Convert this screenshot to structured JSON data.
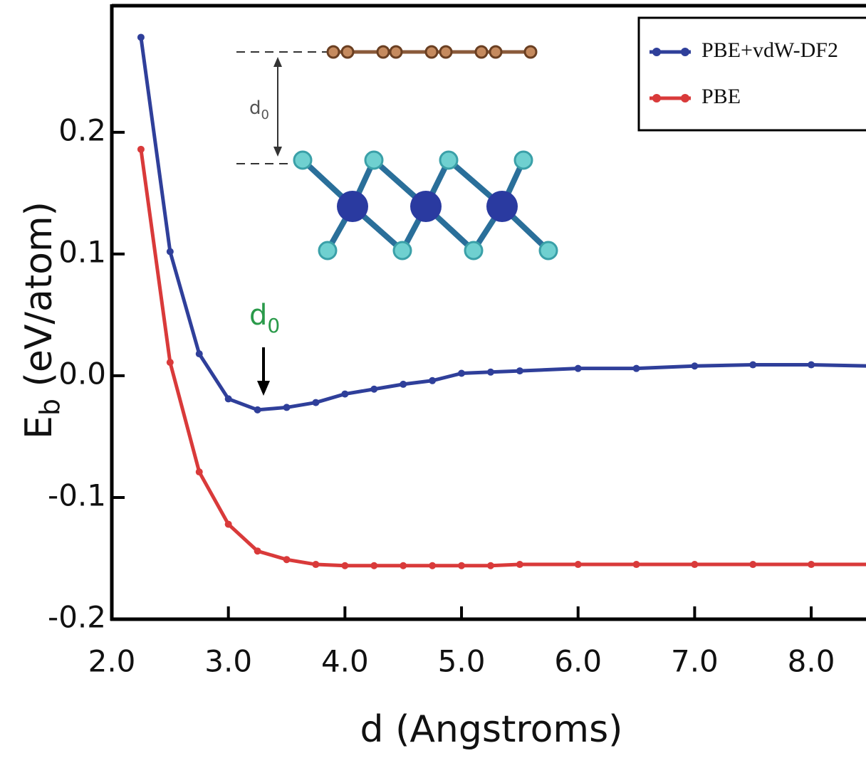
{
  "chart_data": {
    "type": "line",
    "x_label": "d (Angstroms)",
    "y_label": [
      "E",
      "b",
      " (eV/atom)"
    ],
    "x": [
      2.25,
      2.5,
      2.75,
      3.0,
      3.25,
      3.5,
      3.75,
      4.0,
      4.25,
      4.5,
      4.75,
      5.0,
      5.25,
      5.5,
      6.0,
      6.5,
      7.0,
      7.5,
      8.0,
      8.5
    ],
    "series": [
      {
        "name": "PBE+vdW-DF2",
        "color": "#2f3f9a",
        "values": [
          0.278,
          0.102,
          0.018,
          -0.019,
          -0.028,
          -0.026,
          -0.022,
          -0.015,
          -0.011,
          -0.007,
          -0.004,
          0.002,
          0.003,
          0.004,
          0.006,
          0.006,
          0.008,
          0.009,
          0.009,
          0.008
        ]
      },
      {
        "name": "PBE",
        "color": "#d93a3a",
        "values": [
          0.186,
          0.011,
          -0.079,
          -0.122,
          -0.144,
          -0.151,
          -0.155,
          -0.156,
          -0.156,
          -0.156,
          -0.156,
          -0.156,
          -0.156,
          -0.155,
          -0.155,
          -0.155,
          -0.155,
          -0.155,
          -0.155,
          -0.155
        ]
      }
    ],
    "xlim": [
      2.0,
      8.47
    ],
    "ylim": [
      -0.2,
      0.304
    ],
    "xticks": [
      {
        "value": 2,
        "label": "2.0"
      },
      {
        "value": 3,
        "label": "3.0"
      },
      {
        "value": 4,
        "label": "4.0"
      },
      {
        "value": 5,
        "label": "5.0"
      },
      {
        "value": 6,
        "label": "6.0"
      },
      {
        "value": 7,
        "label": "7.0"
      },
      {
        "value": 8,
        "label": "8.0"
      }
    ],
    "yticks": [
      -0.2,
      -0.1,
      {
        "value": 0,
        "label": "0.0"
      },
      0.1,
      0.2
    ],
    "legend": "upper right",
    "annotations": [
      {
        "text": "d",
        "sub": "0",
        "color": "#2a9a4a"
      },
      {
        "text": "d",
        "sub": "0",
        "color": "#555555"
      }
    ]
  }
}
